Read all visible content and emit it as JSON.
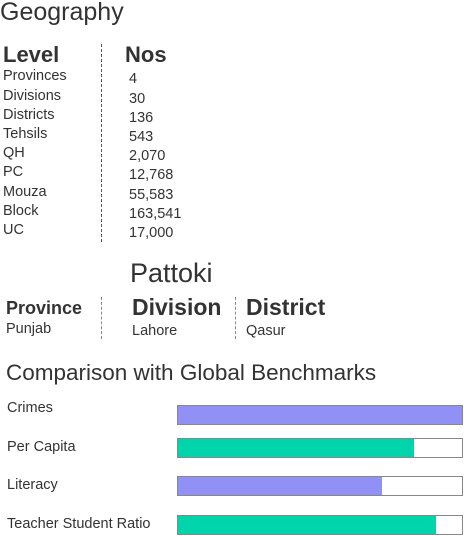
{
  "title": "Geography",
  "geography": {
    "level_header": "Level",
    "nos_header": "Nos",
    "rows": [
      {
        "level": "Provinces",
        "nos": "4"
      },
      {
        "level": "Divisions",
        "nos": "30"
      },
      {
        "level": "Districts",
        "nos": "136"
      },
      {
        "level": "Tehsils",
        "nos": "543"
      },
      {
        "level": "QH",
        "nos": "2,070"
      },
      {
        "level": "PC",
        "nos": "12,768"
      },
      {
        "level": "Mouza",
        "nos": "55,583"
      },
      {
        "level": "Block",
        "nos": "163,541"
      },
      {
        "level": "UC",
        "nos": "17,000"
      }
    ]
  },
  "location": {
    "name": "Pattoki",
    "province_label": "Province",
    "province_value": "Punjab",
    "division_label": "Division",
    "division_value": "Lahore",
    "district_label": "District",
    "district_value": "Qasur"
  },
  "benchmarks": {
    "title": "Comparison with Global Benchmarks",
    "colors": {
      "purple": "#9190f5",
      "teal": "#00d4aa"
    },
    "items": [
      {
        "label": "Crimes",
        "fraction": 1.0,
        "color": "#9190f5"
      },
      {
        "label": "Per Capita",
        "fraction": 0.83,
        "color": "#00d4aa"
      },
      {
        "label": "Literacy",
        "fraction": 0.72,
        "color": "#9190f5"
      },
      {
        "label": "Teacher Student Ratio",
        "fraction": 0.91,
        "color": "#00d4aa"
      }
    ]
  }
}
